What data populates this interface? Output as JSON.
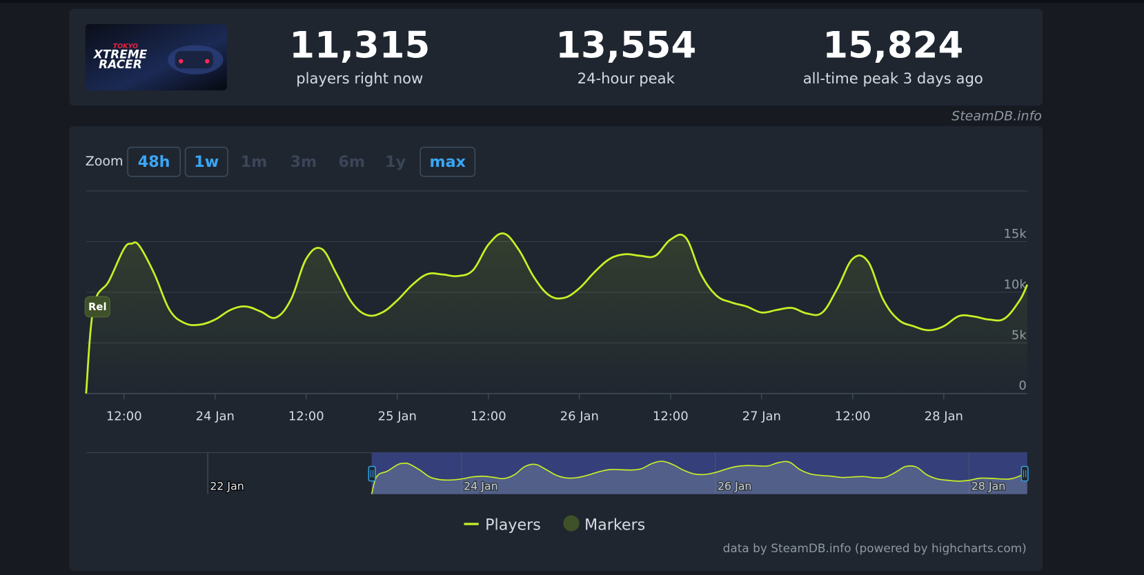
{
  "header": {
    "logo_lines": [
      "TOKYO",
      "XTREME",
      "RACER"
    ],
    "stats": [
      {
        "value": "11,315",
        "label": "players right now"
      },
      {
        "value": "13,554",
        "label": "24-hour peak"
      },
      {
        "value": "15,824",
        "label": "all-time peak 3 days ago"
      }
    ],
    "source": "SteamDB.info"
  },
  "zoom": {
    "label": "Zoom",
    "buttons": [
      {
        "text": "48h",
        "active": true
      },
      {
        "text": "1w",
        "active": true
      },
      {
        "text": "1m",
        "active": false
      },
      {
        "text": "3m",
        "active": false
      },
      {
        "text": "6m",
        "active": false
      },
      {
        "text": "1y",
        "active": false
      },
      {
        "text": "max",
        "active": true
      }
    ]
  },
  "chart_data": {
    "type": "line",
    "x": [
      "23 Jan 07:00",
      "23 Jan 08:00",
      "23 Jan 10:00",
      "23 Jan 12:00",
      "23 Jan 13:00",
      "23 Jan 14:00",
      "23 Jan 16:00",
      "23 Jan 18:00",
      "23 Jan 20:00",
      "23 Jan 22:00",
      "24 Jan 00:00",
      "24 Jan 02:00",
      "24 Jan 04:00",
      "24 Jan 06:00",
      "24 Jan 08:00",
      "24 Jan 10:00",
      "24 Jan 12:00",
      "24 Jan 14:00",
      "24 Jan 16:00",
      "24 Jan 18:00",
      "24 Jan 20:00",
      "24 Jan 22:00",
      "25 Jan 00:00",
      "25 Jan 02:00",
      "25 Jan 04:00",
      "25 Jan 06:00",
      "25 Jan 08:00",
      "25 Jan 10:00",
      "25 Jan 12:00",
      "25 Jan 14:00",
      "25 Jan 16:00",
      "25 Jan 18:00",
      "25 Jan 20:00",
      "25 Jan 22:00",
      "26 Jan 00:00",
      "26 Jan 02:00",
      "26 Jan 04:00",
      "26 Jan 06:00",
      "26 Jan 08:00",
      "26 Jan 10:00",
      "26 Jan 12:00",
      "26 Jan 14:00",
      "26 Jan 16:00",
      "26 Jan 18:00",
      "26 Jan 20:00",
      "26 Jan 22:00",
      "27 Jan 00:00",
      "27 Jan 02:00",
      "27 Jan 04:00",
      "27 Jan 06:00",
      "27 Jan 08:00",
      "27 Jan 10:00",
      "27 Jan 12:00",
      "27 Jan 14:00",
      "27 Jan 16:00",
      "27 Jan 18:00",
      "27 Jan 20:00",
      "27 Jan 22:00",
      "28 Jan 00:00",
      "28 Jan 02:00",
      "28 Jan 04:00",
      "28 Jan 06:00",
      "28 Jan 08:00",
      "28 Jan 10:00",
      "28 Jan 11:00"
    ],
    "series": [
      {
        "name": "Players",
        "color": "#c8f025",
        "values": [
          0,
          8600,
          11100,
          14300,
          14800,
          14600,
          11800,
          8250,
          6950,
          6800,
          7300,
          8250,
          8600,
          8100,
          7500,
          9300,
          13300,
          14300,
          11800,
          9000,
          7750,
          8000,
          9200,
          10750,
          11800,
          11750,
          11600,
          12200,
          14700,
          15800,
          14200,
          11500,
          9700,
          9450,
          10400,
          12000,
          13300,
          13750,
          13600,
          13600,
          15200,
          15400,
          11800,
          9700,
          9000,
          8600,
          8000,
          8250,
          8450,
          7900,
          8000,
          10400,
          13300,
          13050,
          9300,
          7300,
          6650,
          6250,
          6650,
          7650,
          7600,
          7300,
          7400,
          9200,
          10750
        ]
      }
    ],
    "xlim": [
      "23 Jan 07:00",
      "28 Jan 11:00"
    ],
    "xticks": [
      {
        "value": "23 Jan 12:00",
        "label": "12:00"
      },
      {
        "value": "24 Jan 00:00",
        "label": "24 Jan"
      },
      {
        "value": "24 Jan 12:00",
        "label": "12:00"
      },
      {
        "value": "25 Jan 00:00",
        "label": "25 Jan"
      },
      {
        "value": "25 Jan 12:00",
        "label": "12:00"
      },
      {
        "value": "26 Jan 00:00",
        "label": "26 Jan"
      },
      {
        "value": "26 Jan 12:00",
        "label": "12:00"
      },
      {
        "value": "27 Jan 00:00",
        "label": "27 Jan"
      },
      {
        "value": "27 Jan 12:00",
        "label": "12:00"
      },
      {
        "value": "28 Jan 00:00",
        "label": "28 Jan"
      }
    ],
    "ylim": [
      0,
      20000
    ],
    "yticks": [
      0,
      {
        "value": 5000,
        "label": "5k"
      },
      {
        "value": 10000,
        "label": "10k"
      },
      {
        "value": 15000,
        "label": "15k"
      }
    ],
    "grid": true,
    "markers": {
      "name": "Markers",
      "color": "#3f5128",
      "items": [
        {
          "x": "23 Jan 08:30",
          "label": "Rel"
        }
      ]
    },
    "navigator": {
      "xlim": [
        "21 Jan 01:00",
        "28 Jan 11:00"
      ],
      "xticks": [
        {
          "value": "22 Jan 00:00",
          "label": "22 Jan"
        },
        {
          "value": "24 Jan 00:00",
          "label": "24 Jan"
        },
        {
          "value": "26 Jan 00:00",
          "label": "26 Jan"
        },
        {
          "value": "28 Jan 00:00",
          "label": "28 Jan"
        }
      ]
    },
    "credits": "data by SteamDB.info (powered by highcharts.com)"
  }
}
